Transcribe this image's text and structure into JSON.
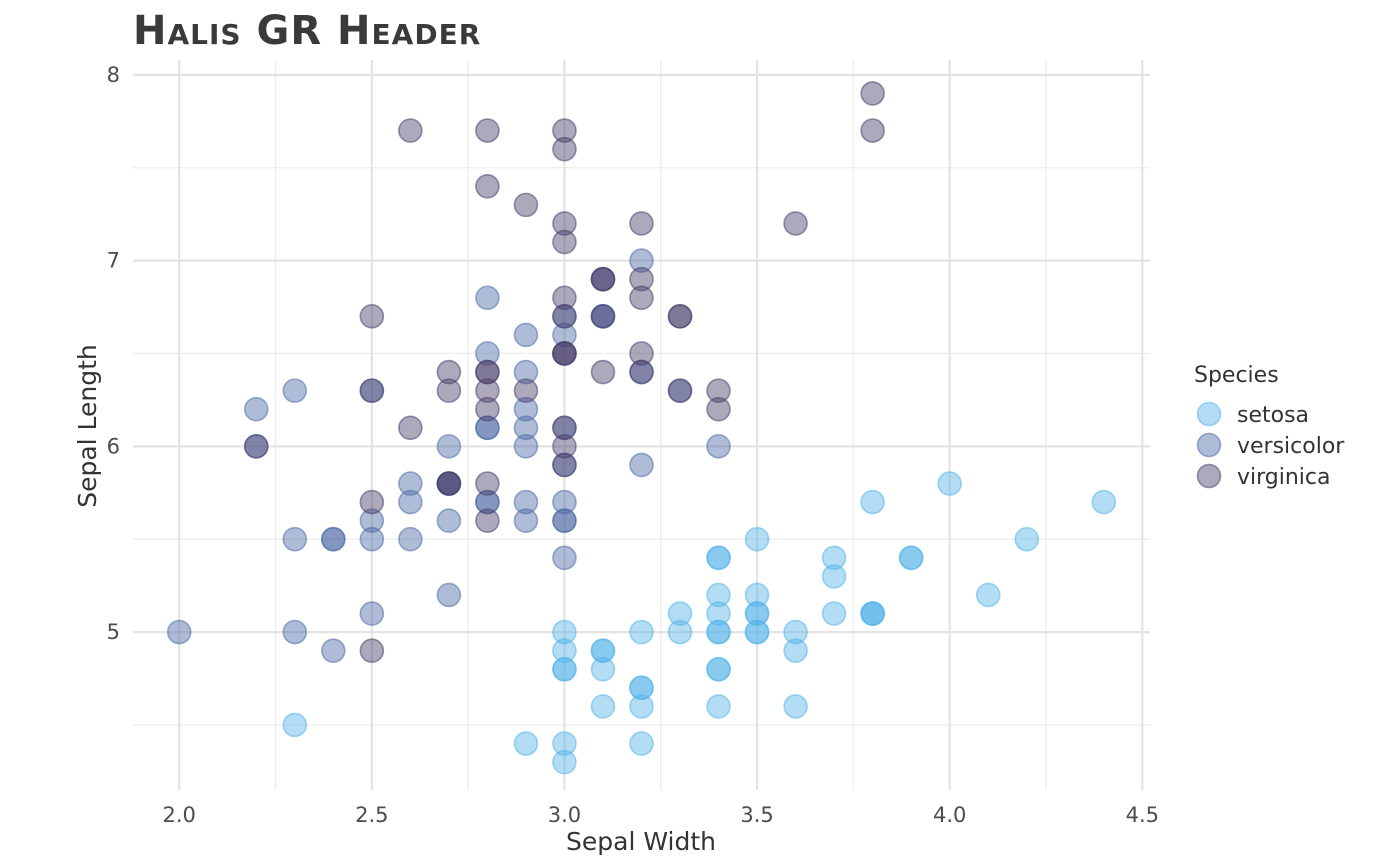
{
  "chart_data": {
    "type": "scatter",
    "title": "Halis GR Header",
    "xlabel": "Sepal Width",
    "ylabel": "Sepal Length",
    "xlim": [
      1.88,
      4.52
    ],
    "ylim": [
      4.15,
      8.08
    ],
    "x_ticks": [
      "2.0",
      "2.5",
      "3.0",
      "3.5",
      "4.0",
      "4.5"
    ],
    "y_ticks": [
      "5",
      "6",
      "7",
      "8"
    ],
    "grid": true,
    "legend": {
      "title": "Species",
      "position": "right"
    },
    "series": [
      {
        "name": "setosa",
        "color": "#56B4E9",
        "points": [
          [
            3.5,
            5.1
          ],
          [
            3.0,
            4.9
          ],
          [
            3.2,
            4.7
          ],
          [
            3.1,
            4.6
          ],
          [
            3.6,
            5.0
          ],
          [
            3.9,
            5.4
          ],
          [
            3.4,
            4.6
          ],
          [
            3.4,
            5.0
          ],
          [
            2.9,
            4.4
          ],
          [
            3.1,
            4.9
          ],
          [
            3.7,
            5.4
          ],
          [
            3.4,
            4.8
          ],
          [
            3.0,
            4.8
          ],
          [
            3.0,
            4.3
          ],
          [
            4.0,
            5.8
          ],
          [
            4.4,
            5.7
          ],
          [
            3.9,
            5.4
          ],
          [
            3.5,
            5.1
          ],
          [
            3.8,
            5.7
          ],
          [
            3.8,
            5.1
          ],
          [
            3.4,
            5.4
          ],
          [
            3.7,
            5.1
          ],
          [
            3.6,
            4.6
          ],
          [
            3.3,
            5.1
          ],
          [
            3.4,
            4.8
          ],
          [
            3.0,
            5.0
          ],
          [
            3.4,
            5.0
          ],
          [
            3.5,
            5.2
          ],
          [
            3.4,
            5.2
          ],
          [
            3.2,
            4.7
          ],
          [
            3.1,
            4.8
          ],
          [
            3.4,
            5.4
          ],
          [
            4.1,
            5.2
          ],
          [
            4.2,
            5.5
          ],
          [
            3.1,
            4.9
          ],
          [
            3.2,
            5.0
          ],
          [
            3.5,
            5.5
          ],
          [
            3.6,
            4.9
          ],
          [
            3.0,
            4.4
          ],
          [
            3.4,
            5.1
          ],
          [
            3.5,
            5.0
          ],
          [
            2.3,
            4.5
          ],
          [
            3.2,
            4.4
          ],
          [
            3.5,
            5.0
          ],
          [
            3.8,
            5.1
          ],
          [
            3.0,
            4.8
          ],
          [
            3.8,
            5.1
          ],
          [
            3.2,
            4.6
          ],
          [
            3.7,
            5.3
          ],
          [
            3.3,
            5.0
          ]
        ]
      },
      {
        "name": "versicolor",
        "color": "#4E6BA6",
        "points": [
          [
            3.2,
            7.0
          ],
          [
            3.2,
            6.4
          ],
          [
            3.1,
            6.9
          ],
          [
            2.3,
            5.5
          ],
          [
            2.8,
            6.5
          ],
          [
            2.8,
            5.7
          ],
          [
            3.3,
            6.3
          ],
          [
            2.4,
            4.9
          ],
          [
            2.9,
            6.6
          ],
          [
            2.7,
            5.2
          ],
          [
            2.0,
            5.0
          ],
          [
            3.0,
            5.9
          ],
          [
            2.2,
            6.0
          ],
          [
            2.9,
            6.1
          ],
          [
            2.9,
            5.6
          ],
          [
            3.1,
            6.7
          ],
          [
            3.0,
            5.6
          ],
          [
            2.7,
            5.8
          ],
          [
            2.2,
            6.2
          ],
          [
            2.5,
            5.6
          ],
          [
            3.2,
            5.9
          ],
          [
            2.8,
            6.1
          ],
          [
            2.5,
            6.3
          ],
          [
            2.8,
            6.1
          ],
          [
            2.9,
            6.4
          ],
          [
            3.0,
            6.6
          ],
          [
            2.8,
            6.8
          ],
          [
            3.0,
            6.7
          ],
          [
            2.9,
            6.0
          ],
          [
            2.6,
            5.7
          ],
          [
            2.4,
            5.5
          ],
          [
            2.4,
            5.5
          ],
          [
            2.7,
            5.8
          ],
          [
            2.7,
            6.0
          ],
          [
            3.0,
            5.4
          ],
          [
            3.4,
            6.0
          ],
          [
            3.1,
            6.7
          ],
          [
            2.3,
            6.3
          ],
          [
            3.0,
            5.6
          ],
          [
            2.5,
            5.5
          ],
          [
            2.6,
            5.5
          ],
          [
            3.0,
            6.1
          ],
          [
            2.6,
            5.8
          ],
          [
            2.3,
            5.0
          ],
          [
            2.7,
            5.6
          ],
          [
            3.0,
            5.7
          ],
          [
            2.9,
            5.7
          ],
          [
            2.9,
            6.2
          ],
          [
            2.5,
            5.1
          ],
          [
            2.8,
            5.7
          ]
        ]
      },
      {
        "name": "virginica",
        "color": "#4A3F6B",
        "points": [
          [
            3.3,
            6.3
          ],
          [
            2.7,
            5.8
          ],
          [
            3.0,
            7.1
          ],
          [
            2.9,
            6.3
          ],
          [
            3.0,
            6.5
          ],
          [
            3.0,
            7.6
          ],
          [
            2.5,
            4.9
          ],
          [
            2.9,
            7.3
          ],
          [
            2.5,
            6.7
          ],
          [
            3.6,
            7.2
          ],
          [
            3.2,
            6.5
          ],
          [
            2.7,
            6.4
          ],
          [
            3.0,
            6.8
          ],
          [
            2.5,
            5.7
          ],
          [
            2.8,
            5.8
          ],
          [
            3.2,
            6.4
          ],
          [
            3.0,
            6.5
          ],
          [
            3.8,
            7.7
          ],
          [
            2.6,
            7.7
          ],
          [
            2.2,
            6.0
          ],
          [
            3.2,
            6.9
          ],
          [
            2.8,
            5.6
          ],
          [
            2.8,
            7.7
          ],
          [
            2.7,
            6.3
          ],
          [
            3.3,
            6.7
          ],
          [
            3.2,
            7.2
          ],
          [
            2.8,
            6.2
          ],
          [
            3.0,
            6.1
          ],
          [
            2.8,
            6.4
          ],
          [
            3.0,
            7.2
          ],
          [
            2.8,
            7.4
          ],
          [
            3.8,
            7.9
          ],
          [
            2.8,
            6.4
          ],
          [
            2.8,
            6.3
          ],
          [
            2.6,
            6.1
          ],
          [
            3.0,
            7.7
          ],
          [
            3.4,
            6.3
          ],
          [
            3.1,
            6.4
          ],
          [
            3.0,
            6.0
          ],
          [
            3.1,
            6.9
          ],
          [
            3.1,
            6.7
          ],
          [
            3.1,
            6.9
          ],
          [
            2.7,
            5.8
          ],
          [
            3.2,
            6.8
          ],
          [
            3.3,
            6.7
          ],
          [
            3.0,
            6.7
          ],
          [
            2.5,
            6.3
          ],
          [
            3.0,
            6.5
          ],
          [
            3.4,
            6.2
          ],
          [
            3.0,
            5.9
          ]
        ]
      }
    ]
  }
}
